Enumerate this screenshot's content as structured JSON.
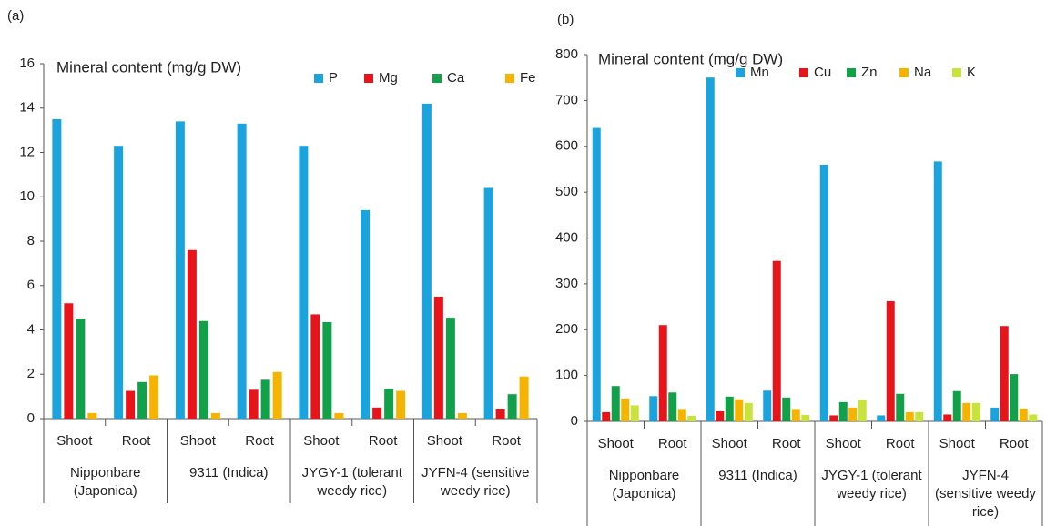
{
  "chart_data": [
    {
      "type": "bar",
      "panel": "(a)",
      "y_label": "Mineral content (mg/g DW)",
      "categories": [
        "Shoot",
        "Root",
        "Shoot",
        "Root",
        "Shoot",
        "Root",
        "Shoot",
        "Root"
      ],
      "groups": [
        "Nipponbare (Japonica)",
        "9311 (Indica)",
        "JYGY-1 (tolerant weedy rice)",
        "JYFN-4 (sensitive weedy rice)"
      ],
      "ylim": [
        0,
        16
      ],
      "yticks": [
        0,
        2,
        4,
        6,
        8,
        10,
        12,
        14,
        16
      ],
      "series": [
        {
          "name": "P",
          "color": "#1aa3dc",
          "values": [
            13.5,
            12.3,
            13.4,
            13.3,
            12.3,
            9.4,
            14.2,
            10.4
          ]
        },
        {
          "name": "Mg",
          "color": "#e8141c",
          "values": [
            5.2,
            1.25,
            7.6,
            1.3,
            4.7,
            0.5,
            5.5,
            0.45
          ]
        },
        {
          "name": "Ca",
          "color": "#12a04a",
          "values": [
            4.5,
            1.65,
            4.4,
            1.75,
            4.35,
            1.35,
            4.55,
            1.1
          ]
        },
        {
          "name": "Fe",
          "color": "#f5b400",
          "values": [
            0.25,
            1.95,
            0.25,
            2.1,
            0.25,
            1.25,
            0.25,
            1.9
          ]
        }
      ]
    },
    {
      "type": "bar",
      "panel": "(b)",
      "y_label": "Mineral content (mg/g DW)",
      "categories": [
        "Shoot",
        "Root",
        "Shoot",
        "Root",
        "Shoot",
        "Root",
        "Shoot",
        "Root"
      ],
      "groups": [
        "Nipponbare (Japonica)",
        "9311 (Indica)",
        "JYGY-1 (tolerant weedy rice)",
        "JYFN-4 (sensitive weedy rice)"
      ],
      "ylim": [
        0,
        800
      ],
      "yticks": [
        0,
        100,
        200,
        300,
        400,
        500,
        600,
        700,
        800
      ],
      "series": [
        {
          "name": "Mn",
          "color": "#1aa3dc",
          "values": [
            640,
            55,
            750,
            67,
            560,
            13,
            567,
            30
          ]
        },
        {
          "name": "Cu",
          "color": "#e8141c",
          "values": [
            20,
            210,
            22,
            350,
            13,
            262,
            15,
            208
          ]
        },
        {
          "name": "Zn",
          "color": "#12a04a",
          "values": [
            77,
            63,
            54,
            52,
            42,
            60,
            66,
            103
          ]
        },
        {
          "name": "Na",
          "color": "#f5b400",
          "values": [
            50,
            27,
            48,
            27,
            30,
            20,
            40,
            28
          ]
        },
        {
          "name": "K",
          "color": "#c8e33c",
          "values": [
            35,
            12,
            40,
            14,
            47,
            20,
            40,
            15
          ]
        }
      ]
    }
  ]
}
